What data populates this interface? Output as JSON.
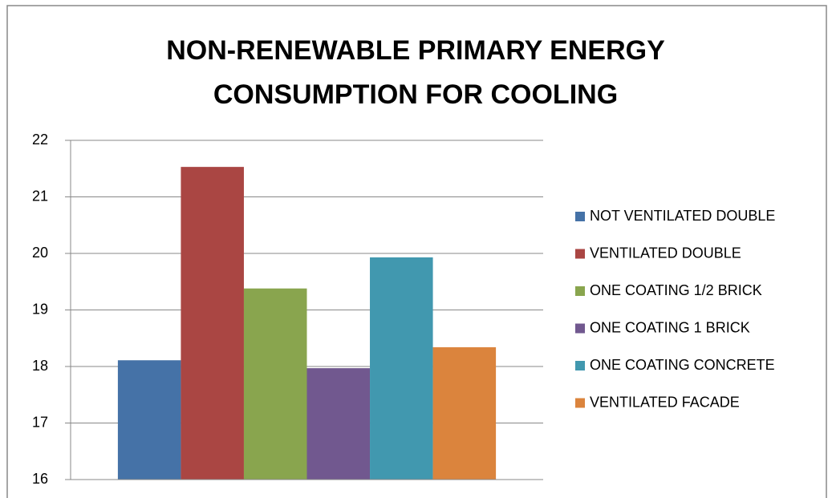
{
  "chart_data": {
    "type": "bar",
    "title": "NON-RENEWABLE PRIMARY ENERGY CONSUMPTION FOR COOLING",
    "categories": [
      null
    ],
    "series": [
      {
        "name": "NOT VENTILATED DOUBLE",
        "color": "#4572a7",
        "values": [
          18.11
        ]
      },
      {
        "name": "VENTILATED DOUBLE",
        "color": "#aa4643",
        "values": [
          21.53
        ]
      },
      {
        "name": "ONE COATING 1/2 BRICK",
        "color": "#89a54e",
        "values": [
          19.38
        ]
      },
      {
        "name": "ONE COATING 1 BRICK",
        "color": "#71588f",
        "values": [
          17.97
        ]
      },
      {
        "name": "ONE COATING CONCRETE",
        "color": "#4198af",
        "values": [
          19.93
        ]
      },
      {
        "name": "VENTILATED FACADE",
        "color": "#db843d",
        "values": [
          18.34
        ]
      }
    ],
    "ylim": [
      16,
      22
    ],
    "yticks": [
      16,
      17,
      18,
      19,
      20,
      21,
      22
    ],
    "grid": true,
    "legend": "right"
  }
}
